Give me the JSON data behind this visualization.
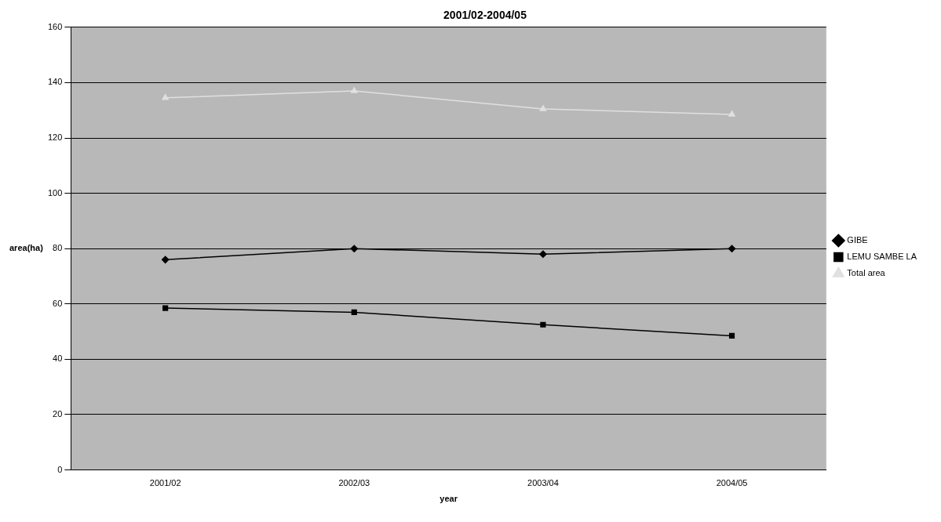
{
  "chart_data": {
    "type": "line",
    "title": "2001/02-2004/05",
    "xlabel": "year",
    "ylabel": "area(ha)",
    "categories": [
      "2001/02",
      "2002/03",
      "2003/04",
      "2004/05"
    ],
    "series": [
      {
        "name": "GIBE",
        "color": "#000000",
        "marker": "diamond",
        "values": [
          76,
          80,
          78,
          80
        ]
      },
      {
        "name": "LEMU SAMBE LA",
        "color": "#000000",
        "marker": "square",
        "values": [
          58.5,
          57,
          52.5,
          48.5
        ]
      },
      {
        "name": "Total area",
        "color": "#e0e0e0",
        "marker": "triangle",
        "values": [
          134.5,
          137,
          130.5,
          128.5
        ]
      }
    ],
    "ylim": [
      0,
      160
    ],
    "yticks": [
      0,
      20,
      40,
      60,
      80,
      100,
      120,
      140,
      160
    ],
    "grid": "y",
    "legend": "right"
  }
}
